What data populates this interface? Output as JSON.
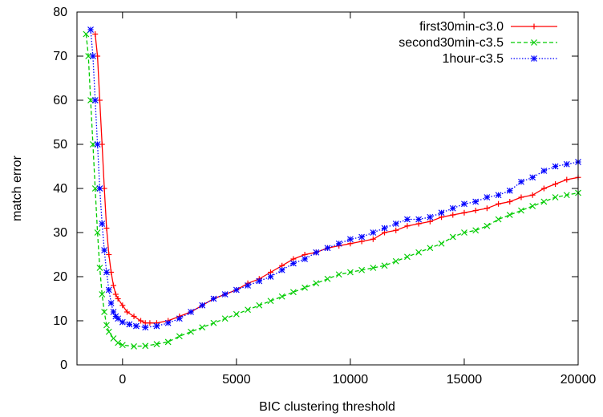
{
  "chart_data": {
    "type": "line",
    "title": "",
    "xlabel": "BIC clustering threshold",
    "ylabel": "match error",
    "xlim": [
      -2000,
      20000
    ],
    "ylim": [
      0,
      80
    ],
    "xticks": [
      0,
      5000,
      10000,
      15000,
      20000
    ],
    "yticks": [
      0,
      10,
      20,
      30,
      40,
      50,
      60,
      70,
      80
    ],
    "grid": false,
    "legend_position": "top-right",
    "series": [
      {
        "name": "first30min-c3.0",
        "color": "#ff0000",
        "marker": "plus",
        "line": "solid",
        "points": [
          [
            -1200,
            75
          ],
          [
            -1100,
            70
          ],
          [
            -1000,
            60
          ],
          [
            -900,
            50
          ],
          [
            -800,
            40
          ],
          [
            -700,
            31
          ],
          [
            -600,
            25
          ],
          [
            -500,
            21
          ],
          [
            -400,
            18
          ],
          [
            -300,
            16
          ],
          [
            -200,
            15
          ],
          [
            0,
            13.5
          ],
          [
            200,
            12
          ],
          [
            500,
            11
          ],
          [
            800,
            10
          ],
          [
            1000,
            9.5
          ],
          [
            1200,
            9.5
          ],
          [
            1500,
            9.5
          ],
          [
            2000,
            10
          ],
          [
            2500,
            11
          ],
          [
            3000,
            12
          ],
          [
            3500,
            13.5
          ],
          [
            4000,
            15
          ],
          [
            4500,
            16
          ],
          [
            5000,
            17
          ],
          [
            5500,
            18.5
          ],
          [
            6000,
            19.5
          ],
          [
            6500,
            21
          ],
          [
            7000,
            22.5
          ],
          [
            7500,
            24
          ],
          [
            8000,
            25
          ],
          [
            8500,
            25.5
          ],
          [
            9000,
            26.5
          ],
          [
            9500,
            27
          ],
          [
            10000,
            27.5
          ],
          [
            10500,
            28
          ],
          [
            11000,
            28.5
          ],
          [
            11500,
            30
          ],
          [
            12000,
            30.5
          ],
          [
            12500,
            31.5
          ],
          [
            13000,
            32
          ],
          [
            13500,
            32.5
          ],
          [
            14000,
            33.5
          ],
          [
            14500,
            34
          ],
          [
            15000,
            34.5
          ],
          [
            15500,
            35
          ],
          [
            16000,
            35.5
          ],
          [
            16500,
            36.5
          ],
          [
            17000,
            37
          ],
          [
            17500,
            38
          ],
          [
            18000,
            38.5
          ],
          [
            18500,
            40
          ],
          [
            19000,
            41
          ],
          [
            19500,
            42
          ],
          [
            20000,
            42.5
          ]
        ]
      },
      {
        "name": "second30min-c3.5",
        "color": "#00cc00",
        "marker": "x",
        "line": "dashed",
        "points": [
          [
            -1600,
            75
          ],
          [
            -1500,
            70
          ],
          [
            -1400,
            60
          ],
          [
            -1300,
            50
          ],
          [
            -1200,
            40
          ],
          [
            -1100,
            30
          ],
          [
            -1000,
            22
          ],
          [
            -900,
            16
          ],
          [
            -800,
            12
          ],
          [
            -700,
            9
          ],
          [
            -600,
            7.5
          ],
          [
            -400,
            6
          ],
          [
            -200,
            5
          ],
          [
            0,
            4.5
          ],
          [
            500,
            4.2
          ],
          [
            1000,
            4.3
          ],
          [
            1500,
            4.7
          ],
          [
            2000,
            5.2
          ],
          [
            2500,
            6.5
          ],
          [
            3000,
            7.5
          ],
          [
            3500,
            8.5
          ],
          [
            4000,
            9.5
          ],
          [
            4500,
            10.5
          ],
          [
            5000,
            11.5
          ],
          [
            5500,
            12.5
          ],
          [
            6000,
            13.5
          ],
          [
            6500,
            14.5
          ],
          [
            7000,
            15.5
          ],
          [
            7500,
            16.5
          ],
          [
            8000,
            17.5
          ],
          [
            8500,
            18.5
          ],
          [
            9000,
            19.5
          ],
          [
            9500,
            20.5
          ],
          [
            10000,
            21
          ],
          [
            10500,
            21.5
          ],
          [
            11000,
            22
          ],
          [
            11500,
            22.5
          ],
          [
            12000,
            23.5
          ],
          [
            12500,
            24.5
          ],
          [
            13000,
            25.5
          ],
          [
            13500,
            26.5
          ],
          [
            14000,
            27.5
          ],
          [
            14500,
            29
          ],
          [
            15000,
            30
          ],
          [
            15500,
            30.5
          ],
          [
            16000,
            31.5
          ],
          [
            16500,
            33
          ],
          [
            17000,
            34
          ],
          [
            17500,
            35
          ],
          [
            18000,
            36
          ],
          [
            18500,
            37
          ],
          [
            19000,
            38
          ],
          [
            19500,
            38.5
          ],
          [
            20000,
            39
          ]
        ]
      },
      {
        "name": "1hour-c3.5",
        "color": "#0000ff",
        "marker": "star",
        "line": "dotted",
        "points": [
          [
            -1400,
            76
          ],
          [
            -1300,
            70
          ],
          [
            -1200,
            60
          ],
          [
            -1100,
            50
          ],
          [
            -1000,
            40
          ],
          [
            -900,
            32
          ],
          [
            -800,
            26
          ],
          [
            -700,
            21
          ],
          [
            -600,
            17
          ],
          [
            -500,
            14
          ],
          [
            -400,
            12
          ],
          [
            -300,
            11
          ],
          [
            -200,
            10.5
          ],
          [
            0,
            9.7
          ],
          [
            300,
            9.2
          ],
          [
            600,
            8.8
          ],
          [
            1000,
            8.5
          ],
          [
            1500,
            8.8
          ],
          [
            2000,
            9.5
          ],
          [
            2500,
            10.5
          ],
          [
            3000,
            12
          ],
          [
            3500,
            13.5
          ],
          [
            4000,
            15
          ],
          [
            4500,
            16
          ],
          [
            5000,
            17
          ],
          [
            5500,
            18
          ],
          [
            6000,
            19
          ],
          [
            6500,
            20
          ],
          [
            7000,
            21.5
          ],
          [
            7500,
            23
          ],
          [
            8000,
            24
          ],
          [
            8500,
            25.5
          ],
          [
            9000,
            26.5
          ],
          [
            9500,
            27.5
          ],
          [
            10000,
            28.5
          ],
          [
            10500,
            29
          ],
          [
            11000,
            30
          ],
          [
            11500,
            31
          ],
          [
            12000,
            32
          ],
          [
            12500,
            33
          ],
          [
            13000,
            33
          ],
          [
            13500,
            33.5
          ],
          [
            14000,
            34.5
          ],
          [
            14500,
            35.5
          ],
          [
            15000,
            36.5
          ],
          [
            15500,
            37
          ],
          [
            16000,
            38
          ],
          [
            16500,
            38.5
          ],
          [
            17000,
            39.5
          ],
          [
            17500,
            41.5
          ],
          [
            18000,
            42.5
          ],
          [
            18500,
            44
          ],
          [
            19000,
            45
          ],
          [
            19500,
            45.5
          ],
          [
            20000,
            46
          ]
        ]
      }
    ]
  }
}
